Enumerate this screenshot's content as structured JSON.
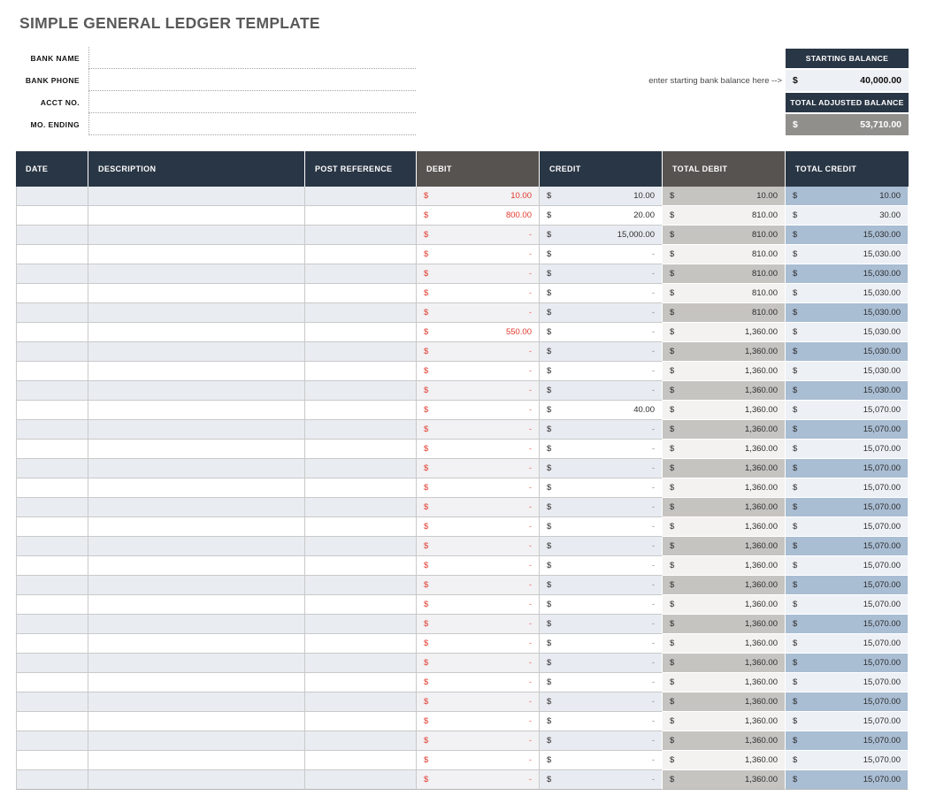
{
  "page_title": "SIMPLE GENERAL LEDGER TEMPLATE",
  "form": {
    "fields": [
      {
        "label": "BANK NAME",
        "value": ""
      },
      {
        "label": "BANK PHONE",
        "value": ""
      },
      {
        "label": "ACCT NO.",
        "value": ""
      },
      {
        "label": "MO. ENDING",
        "value": ""
      }
    ]
  },
  "balance": {
    "hint": "enter starting bank balance here -->",
    "starting": {
      "label": "STARTING BALANCE",
      "currency": "$",
      "value": "40,000.00"
    },
    "adjusted": {
      "label": "TOTAL ADJUSTED BALANCE",
      "currency": "$",
      "value": "53,710.00"
    }
  },
  "ledger": {
    "currency": "$",
    "columns": [
      "DATE",
      "DESCRIPTION",
      "POST REFERENCE",
      "DEBIT",
      "CREDIT",
      "TOTAL DEBIT",
      "TOTAL CREDIT"
    ],
    "rows": [
      {
        "date": "",
        "description": "",
        "post_reference": "",
        "debit": "10.00",
        "credit": "10.00",
        "total_debit": "10.00",
        "total_credit": "10.00"
      },
      {
        "date": "",
        "description": "",
        "post_reference": "",
        "debit": "800.00",
        "credit": "20.00",
        "total_debit": "810.00",
        "total_credit": "30.00"
      },
      {
        "date": "",
        "description": "",
        "post_reference": "",
        "debit": "-",
        "credit": "15,000.00",
        "total_debit": "810.00",
        "total_credit": "15,030.00"
      },
      {
        "date": "",
        "description": "",
        "post_reference": "",
        "debit": "-",
        "credit": "-",
        "total_debit": "810.00",
        "total_credit": "15,030.00"
      },
      {
        "date": "",
        "description": "",
        "post_reference": "",
        "debit": "-",
        "credit": "-",
        "total_debit": "810.00",
        "total_credit": "15,030.00"
      },
      {
        "date": "",
        "description": "",
        "post_reference": "",
        "debit": "-",
        "credit": "-",
        "total_debit": "810.00",
        "total_credit": "15,030.00"
      },
      {
        "date": "",
        "description": "",
        "post_reference": "",
        "debit": "-",
        "credit": "-",
        "total_debit": "810.00",
        "total_credit": "15,030.00"
      },
      {
        "date": "",
        "description": "",
        "post_reference": "",
        "debit": "550.00",
        "credit": "-",
        "total_debit": "1,360.00",
        "total_credit": "15,030.00"
      },
      {
        "date": "",
        "description": "",
        "post_reference": "",
        "debit": "-",
        "credit": "-",
        "total_debit": "1,360.00",
        "total_credit": "15,030.00"
      },
      {
        "date": "",
        "description": "",
        "post_reference": "",
        "debit": "-",
        "credit": "-",
        "total_debit": "1,360.00",
        "total_credit": "15,030.00"
      },
      {
        "date": "",
        "description": "",
        "post_reference": "",
        "debit": "-",
        "credit": "-",
        "total_debit": "1,360.00",
        "total_credit": "15,030.00"
      },
      {
        "date": "",
        "description": "",
        "post_reference": "",
        "debit": "-",
        "credit": "40.00",
        "total_debit": "1,360.00",
        "total_credit": "15,070.00"
      },
      {
        "date": "",
        "description": "",
        "post_reference": "",
        "debit": "-",
        "credit": "-",
        "total_debit": "1,360.00",
        "total_credit": "15,070.00"
      },
      {
        "date": "",
        "description": "",
        "post_reference": "",
        "debit": "-",
        "credit": "-",
        "total_debit": "1,360.00",
        "total_credit": "15,070.00"
      },
      {
        "date": "",
        "description": "",
        "post_reference": "",
        "debit": "-",
        "credit": "-",
        "total_debit": "1,360.00",
        "total_credit": "15,070.00"
      },
      {
        "date": "",
        "description": "",
        "post_reference": "",
        "debit": "-",
        "credit": "-",
        "total_debit": "1,360.00",
        "total_credit": "15,070.00"
      },
      {
        "date": "",
        "description": "",
        "post_reference": "",
        "debit": "-",
        "credit": "-",
        "total_debit": "1,360.00",
        "total_credit": "15,070.00"
      },
      {
        "date": "",
        "description": "",
        "post_reference": "",
        "debit": "-",
        "credit": "-",
        "total_debit": "1,360.00",
        "total_credit": "15,070.00"
      },
      {
        "date": "",
        "description": "",
        "post_reference": "",
        "debit": "-",
        "credit": "-",
        "total_debit": "1,360.00",
        "total_credit": "15,070.00"
      },
      {
        "date": "",
        "description": "",
        "post_reference": "",
        "debit": "-",
        "credit": "-",
        "total_debit": "1,360.00",
        "total_credit": "15,070.00"
      },
      {
        "date": "",
        "description": "",
        "post_reference": "",
        "debit": "-",
        "credit": "-",
        "total_debit": "1,360.00",
        "total_credit": "15,070.00"
      },
      {
        "date": "",
        "description": "",
        "post_reference": "",
        "debit": "-",
        "credit": "-",
        "total_debit": "1,360.00",
        "total_credit": "15,070.00"
      },
      {
        "date": "",
        "description": "",
        "post_reference": "",
        "debit": "-",
        "credit": "-",
        "total_debit": "1,360.00",
        "total_credit": "15,070.00"
      },
      {
        "date": "",
        "description": "",
        "post_reference": "",
        "debit": "-",
        "credit": "-",
        "total_debit": "1,360.00",
        "total_credit": "15,070.00"
      },
      {
        "date": "",
        "description": "",
        "post_reference": "",
        "debit": "-",
        "credit": "-",
        "total_debit": "1,360.00",
        "total_credit": "15,070.00"
      },
      {
        "date": "",
        "description": "",
        "post_reference": "",
        "debit": "-",
        "credit": "-",
        "total_debit": "1,360.00",
        "total_credit": "15,070.00"
      },
      {
        "date": "",
        "description": "",
        "post_reference": "",
        "debit": "-",
        "credit": "-",
        "total_debit": "1,360.00",
        "total_credit": "15,070.00"
      },
      {
        "date": "",
        "description": "",
        "post_reference": "",
        "debit": "-",
        "credit": "-",
        "total_debit": "1,360.00",
        "total_credit": "15,070.00"
      },
      {
        "date": "",
        "description": "",
        "post_reference": "",
        "debit": "-",
        "credit": "-",
        "total_debit": "1,360.00",
        "total_credit": "15,070.00"
      },
      {
        "date": "",
        "description": "",
        "post_reference": "",
        "debit": "-",
        "credit": "-",
        "total_debit": "1,360.00",
        "total_credit": "15,070.00"
      },
      {
        "date": "",
        "description": "",
        "post_reference": "",
        "debit": "-",
        "credit": "-",
        "total_debit": "1,360.00",
        "total_credit": "15,070.00"
      }
    ]
  },
  "colors": {
    "navy": "#293645",
    "header_gray": "#575350",
    "red": "#e2382c",
    "red_dash": "#e9695f",
    "dash_gray": "#8a8a8a",
    "stripe": "#e9ecf1",
    "stripe_debit": "#f2f1f3",
    "stripe_credit": "#e8ecf2",
    "td_odd": "#c6c4c1",
    "td_even": "#f3f2f0",
    "tc_odd": "#a9bdd3",
    "tc_even": "#edf1f6",
    "bal_light": "#edf0f4",
    "bal_gray": "#918f8c",
    "grid": "#c9c9c9",
    "title_gray": "#595959",
    "hint_gray": "#4a4a4a",
    "text_dark": "#2d2d2d"
  }
}
